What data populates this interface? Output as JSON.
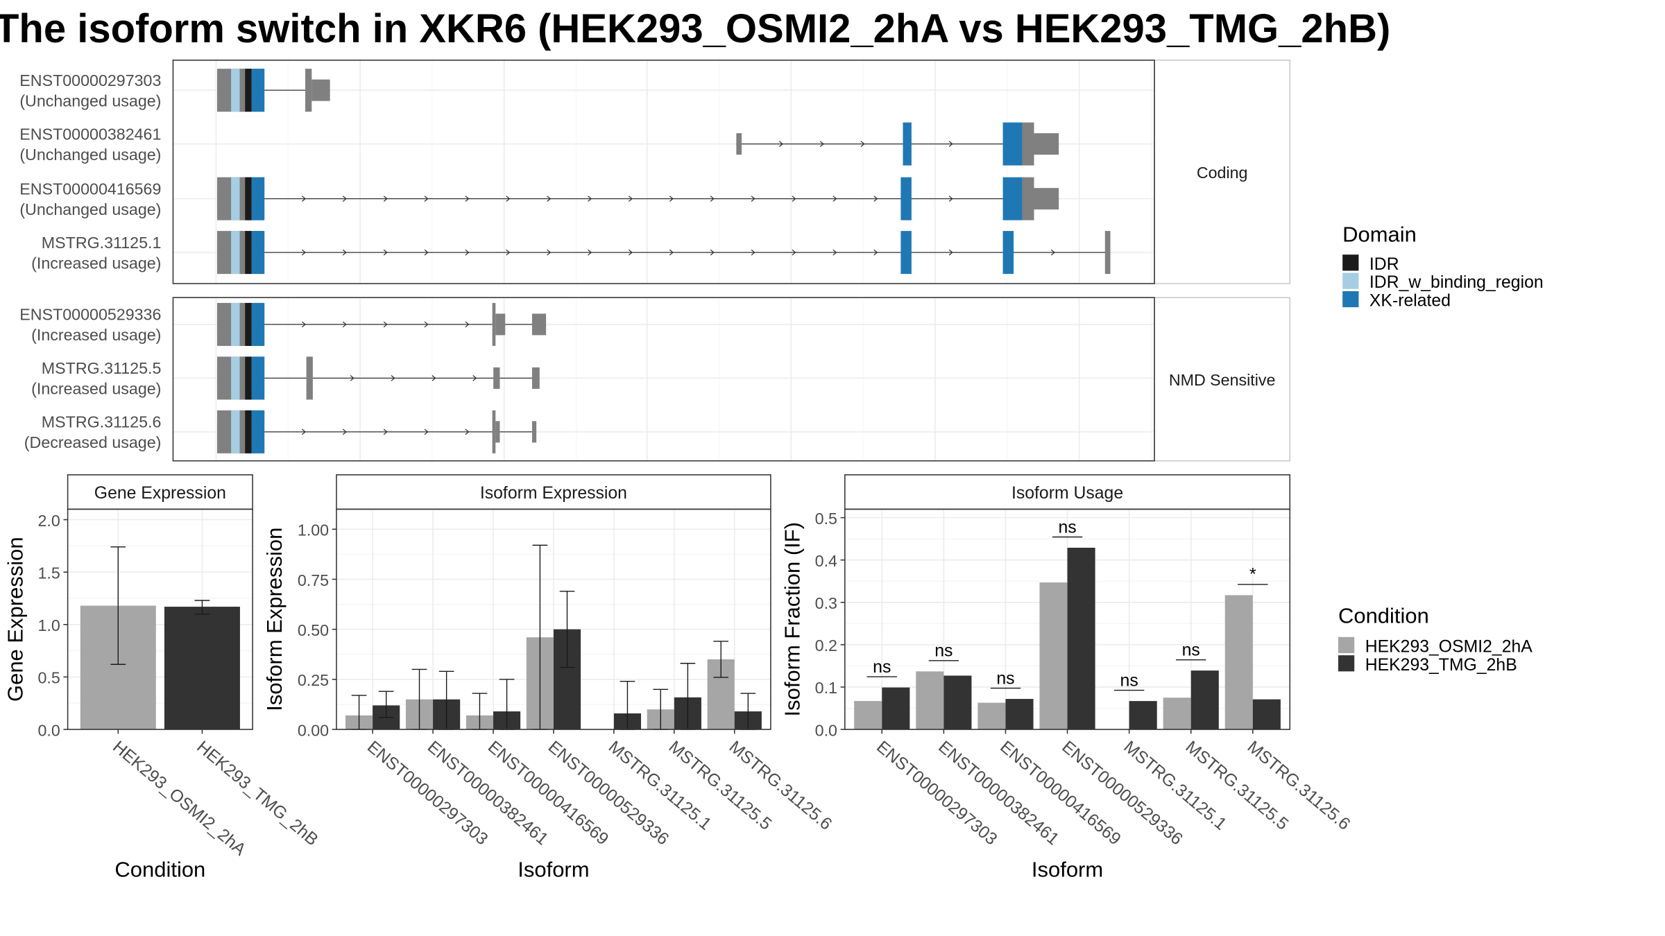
{
  "title": "The isoform switch in XKR6 (HEK293_OSMI2_2hA vs HEK293_TMG_2hB)",
  "colors": {
    "IDR": "#1a1a1a",
    "IDR_w_binding_region": "#a6cee3",
    "XK-related": "#1f78b4",
    "exon": "#808080",
    "cond1": "#a6a6a6",
    "cond2": "#333333"
  },
  "structure": {
    "groups": [
      {
        "label": "Coding",
        "transcripts": [
          {
            "id": "ENST00000297303",
            "usage": "(Unchanged usage)"
          },
          {
            "id": "ENST00000382461",
            "usage": "(Unchanged usage)"
          },
          {
            "id": "ENST00000416569",
            "usage": "(Unchanged usage)"
          },
          {
            "id": "MSTRG.31125.1",
            "usage": "(Increased usage)"
          }
        ]
      },
      {
        "label": "NMD Sensitive",
        "transcripts": [
          {
            "id": "ENST00000529336",
            "usage": "(Increased usage)"
          },
          {
            "id": "MSTRG.31125.5",
            "usage": "(Increased usage)"
          },
          {
            "id": "MSTRG.31125.6",
            "usage": "(Decreased usage)"
          }
        ]
      }
    ],
    "domain_legend": {
      "title": "Domain",
      "items": [
        "IDR",
        "IDR_w_binding_region",
        "XK-related"
      ]
    }
  },
  "chart_data": [
    {
      "type": "bar",
      "panel": "Gene Expression",
      "categories": [
        "HEK293_OSMI2_2hA",
        "HEK293_TMG_2hB"
      ],
      "values": [
        1.18,
        1.17
      ],
      "error_low": [
        0.62,
        1.1
      ],
      "error_high": [
        1.74,
        1.23
      ],
      "xlabel": "Condition",
      "ylabel": "Gene Expression",
      "ylim": [
        0,
        2.1
      ],
      "yticks": [
        "0.0",
        "0.5",
        "1.0",
        "1.5",
        "2.0"
      ]
    },
    {
      "type": "bar",
      "panel": "Isoform Expression",
      "categories": [
        "ENST00000297303",
        "ENST00000382461",
        "ENST00000416569",
        "ENST00000529336",
        "MSTRG.31125.1",
        "MSTRG.31125.5",
        "MSTRG.31125.6"
      ],
      "series": [
        {
          "name": "HEK293_OSMI2_2hA",
          "values": [
            0.07,
            0.15,
            0.07,
            0.46,
            0.0,
            0.1,
            0.35
          ],
          "error_low": [
            0.0,
            0.0,
            0.0,
            0.0,
            0.0,
            0.0,
            0.26
          ],
          "error_high": [
            0.17,
            0.3,
            0.18,
            0.92,
            0.0,
            0.2,
            0.44
          ]
        },
        {
          "name": "HEK293_TMG_2hB",
          "values": [
            0.12,
            0.15,
            0.09,
            0.5,
            0.08,
            0.16,
            0.09
          ],
          "error_low": [
            0.06,
            0.0,
            0.0,
            0.31,
            0.0,
            0.0,
            0.0
          ],
          "error_high": [
            0.19,
            0.29,
            0.25,
            0.69,
            0.24,
            0.33,
            0.18
          ]
        }
      ],
      "xlabel": "Isoform",
      "ylabel": "Isoform Expression",
      "ylim": [
        0,
        1.1
      ],
      "yticks": [
        "0.00",
        "0.25",
        "0.50",
        "0.75",
        "1.00"
      ]
    },
    {
      "type": "bar",
      "panel": "Isoform Usage",
      "categories": [
        "ENST00000297303",
        "ENST00000382461",
        "ENST00000416569",
        "ENST00000529336",
        "MSTRG.31125.1",
        "MSTRG.31125.5",
        "MSTRG.31125.6"
      ],
      "series": [
        {
          "name": "HEK293_OSMI2_2hA",
          "values": [
            0.067,
            0.137,
            0.063,
            0.347,
            0.0,
            0.075,
            0.317
          ]
        },
        {
          "name": "HEK293_TMG_2hB",
          "values": [
            0.099,
            0.127,
            0.072,
            0.429,
            0.067,
            0.139,
            0.071
          ]
        }
      ],
      "significance": [
        "ns",
        "ns",
        "ns",
        "ns",
        "ns",
        "ns",
        "*"
      ],
      "xlabel": "Isoform",
      "ylabel": "Isoform Fraction (IF)",
      "ylim": [
        0,
        0.52
      ],
      "yticks": [
        "0.0",
        "0.1",
        "0.2",
        "0.3",
        "0.4",
        "0.5"
      ]
    }
  ],
  "condition_legend": {
    "title": "Condition",
    "items": [
      "HEK293_OSMI2_2hA",
      "HEK293_TMG_2hB"
    ]
  }
}
